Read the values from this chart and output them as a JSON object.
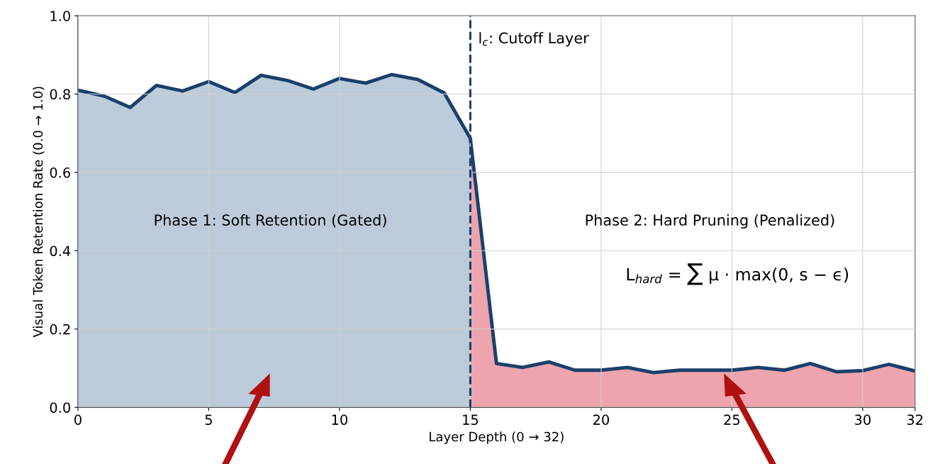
{
  "chart_data": {
    "type": "area",
    "xlabel": "Layer Depth (0 → 32)",
    "ylabel": "Visual Token Retention Rate (0.0 → 1.0)",
    "series": [
      {
        "color": "#bccbda",
        "x": [
          0,
          1,
          2,
          3,
          4,
          5,
          6,
          7,
          8,
          9,
          10,
          11,
          12,
          13,
          14,
          15
        ],
        "values": [
          0.81,
          0.795,
          0.766,
          0.822,
          0.808,
          0.832,
          0.804,
          0.848,
          0.835,
          0.813,
          0.84,
          0.828,
          0.85,
          0.837,
          0.803,
          0.687
        ]
      },
      {
        "color": "#eda4ac",
        "x": [
          15,
          16,
          17,
          18,
          19,
          20,
          21,
          22,
          23,
          24,
          25,
          26,
          27,
          28,
          29,
          30,
          31,
          32
        ],
        "values": [
          0.687,
          0.112,
          0.102,
          0.116,
          0.095,
          0.095,
          0.102,
          0.089,
          0.095,
          0.095,
          0.095,
          0.102,
          0.095,
          0.112,
          0.091,
          0.094,
          0.11,
          0.093
        ]
      },
      {
        "type": "line",
        "color": "#1a3f6b",
        "x": [
          0,
          1,
          2,
          3,
          4,
          5,
          6,
          7,
          8,
          9,
          10,
          11,
          12,
          13,
          14,
          15,
          16,
          17,
          18,
          19,
          20,
          21,
          22,
          23,
          24,
          25,
          26,
          27,
          28,
          29,
          30,
          31,
          32
        ],
        "values": [
          0.81,
          0.795,
          0.766,
          0.822,
          0.808,
          0.832,
          0.804,
          0.848,
          0.835,
          0.813,
          0.84,
          0.828,
          0.85,
          0.837,
          0.803,
          0.687,
          0.112,
          0.102,
          0.116,
          0.095,
          0.095,
          0.102,
          0.089,
          0.095,
          0.095,
          0.095,
          0.102,
          0.095,
          0.112,
          0.091,
          0.094,
          0.11,
          0.093
        ]
      }
    ],
    "xlim": [
      0,
      32
    ],
    "ylim": [
      0,
      1.0
    ],
    "xticks": [
      0,
      5,
      10,
      15,
      20,
      25,
      30,
      32
    ],
    "yticks": [
      {
        "value": 0,
        "label": "0.0"
      },
      {
        "value": 0.2,
        "label": "0.2"
      },
      {
        "value": 0.4,
        "label": "0.4"
      },
      {
        "value": 0.6,
        "label": "0.6"
      },
      {
        "value": 0.8,
        "label": "0.8"
      },
      {
        "value": 1.0,
        "label": "1.0"
      }
    ],
    "ref_lines": [
      {
        "axis": "x",
        "value": 15,
        "label": "l$_{c}$: Cutoff Layer",
        "color": "#1a3f6b",
        "line_style": "dashed"
      }
    ],
    "annotations": [
      "Phase 1: Soft Retention (Gated)",
      "Phase 2: Hard Pruning (Penalized)",
      "L$_{hard}$ = ∑ μ · max(0, s − ϵ)"
    ],
    "grid": true
  }
}
